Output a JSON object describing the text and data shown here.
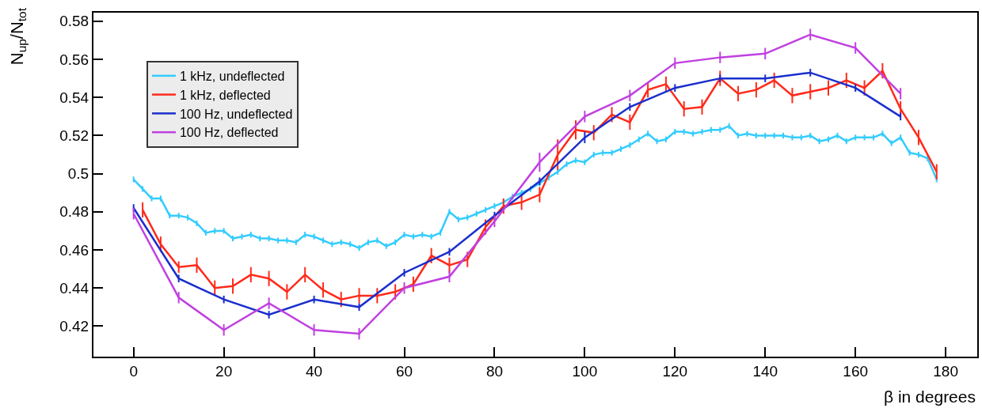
{
  "chart_data": {
    "type": "line",
    "xlabel": "β in degrees",
    "ylabel": "N$_{up}$/N$_{tot}$",
    "xlim": [
      -8.9,
      187
    ],
    "xticks": [
      0,
      20,
      40,
      60,
      80,
      100,
      120,
      140,
      160,
      180
    ],
    "ylim": [
      0.404,
      0.5845
    ],
    "yticks": [
      0.42,
      0.44,
      0.46,
      0.48,
      {
        "value": 0.5,
        "label": "0.5"
      },
      0.52,
      0.54,
      0.56,
      0.58
    ],
    "grid": false,
    "legend": "top left",
    "marker": "none",
    "line_style": "solid",
    "series": [
      {
        "name": "1 kHz, undeflected",
        "color": "#33ccff",
        "x": [
          0,
          2,
          4,
          6,
          8,
          10,
          12,
          14,
          16,
          18,
          20,
          22,
          24,
          26,
          28,
          30,
          32,
          34,
          36,
          38,
          40,
          42,
          44,
          46,
          48,
          50,
          52,
          54,
          56,
          58,
          60,
          62,
          64,
          66,
          68,
          70,
          72,
          74,
          76,
          78,
          80,
          82,
          84,
          86,
          88,
          90,
          92,
          94,
          96,
          98,
          100,
          102,
          104,
          106,
          108,
          110,
          112,
          114,
          116,
          118,
          120,
          122,
          124,
          126,
          128,
          130,
          132,
          134,
          136,
          138,
          140,
          142,
          144,
          146,
          148,
          150,
          152,
          154,
          156,
          158,
          160,
          162,
          164,
          166,
          168,
          170,
          172,
          174,
          176,
          178
        ],
        "values": [
          0.497,
          0.492,
          0.487,
          0.487,
          0.478,
          0.478,
          0.477,
          0.474,
          0.469,
          0.47,
          0.47,
          0.466,
          0.467,
          0.468,
          0.466,
          0.466,
          0.465,
          0.465,
          0.464,
          0.468,
          0.467,
          0.465,
          0.463,
          0.464,
          0.463,
          0.461,
          0.464,
          0.465,
          0.462,
          0.464,
          0.468,
          0.467,
          0.468,
          0.467,
          0.469,
          0.48,
          0.476,
          0.477,
          0.479,
          0.481,
          0.483,
          0.485,
          0.488,
          0.49,
          0.492,
          0.495,
          0.498,
          0.501,
          0.505,
          0.507,
          0.506,
          0.51,
          0.511,
          0.511,
          0.513,
          0.515,
          0.518,
          0.521,
          0.517,
          0.518,
          0.522,
          0.522,
          0.521,
          0.522,
          0.523,
          0.523,
          0.525,
          0.52,
          0.521,
          0.52,
          0.52,
          0.52,
          0.52,
          0.519,
          0.519,
          0.52,
          0.517,
          0.518,
          0.52,
          0.517,
          0.519,
          0.519,
          0.519,
          0.521,
          0.516,
          0.519,
          0.511,
          0.51,
          0.508,
          0.497
        ],
        "errors": [
          0.0015,
          0.0015,
          0.0015,
          0.0015,
          0.0015,
          0.0015,
          0.0015,
          0.0015,
          0.0015,
          0.0015,
          0.0015,
          0.0015,
          0.0015,
          0.0015,
          0.0015,
          0.0015,
          0.0015,
          0.0015,
          0.0015,
          0.0015,
          0.0015,
          0.0015,
          0.0015,
          0.0015,
          0.0015,
          0.0015,
          0.0015,
          0.0015,
          0.0015,
          0.0015,
          0.0015,
          0.0015,
          0.0015,
          0.0015,
          0.0015,
          0.0015,
          0.0015,
          0.0015,
          0.0015,
          0.0015,
          0.0015,
          0.0015,
          0.0015,
          0.0015,
          0.0015,
          0.0015,
          0.0015,
          0.0015,
          0.0015,
          0.0015,
          0.0015,
          0.0015,
          0.0015,
          0.0015,
          0.0015,
          0.0015,
          0.0015,
          0.0015,
          0.0015,
          0.0015,
          0.0015,
          0.0015,
          0.0015,
          0.0015,
          0.0015,
          0.0015,
          0.0015,
          0.0015,
          0.0015,
          0.0015,
          0.0015,
          0.0015,
          0.0015,
          0.0015,
          0.0015,
          0.0015,
          0.0015,
          0.0015,
          0.0015,
          0.0015,
          0.0015,
          0.0015,
          0.0015,
          0.0015,
          0.0015,
          0.0015,
          0.0015,
          0.0015,
          0.0015,
          0.0015
        ]
      },
      {
        "name": "1 kHz, deflected",
        "color": "#ff2a1a",
        "x": [
          2,
          6,
          10,
          14,
          18,
          22,
          26,
          30,
          34,
          38,
          42,
          46,
          50,
          54,
          58,
          62,
          66,
          70,
          74,
          78,
          82,
          86,
          90,
          94,
          98,
          102,
          106,
          110,
          114,
          118,
          122,
          126,
          130,
          134,
          138,
          142,
          146,
          150,
          154,
          158,
          162,
          166,
          170,
          174,
          178
        ],
        "values": [
          0.481,
          0.463,
          0.451,
          0.452,
          0.44,
          0.441,
          0.447,
          0.445,
          0.438,
          0.447,
          0.439,
          0.434,
          0.436,
          0.436,
          0.438,
          0.442,
          0.457,
          0.452,
          0.455,
          0.472,
          0.483,
          0.485,
          0.489,
          0.51,
          0.523,
          0.5215,
          0.531,
          0.527,
          0.544,
          0.547,
          0.534,
          0.535,
          0.55,
          0.542,
          0.544,
          0.549,
          0.541,
          0.543,
          0.545,
          0.549,
          0.545,
          0.554,
          0.534,
          0.519,
          0.501
        ],
        "errors": [
          0.004,
          0.004,
          0.003,
          0.004,
          0.004,
          0.004,
          0.004,
          0.004,
          0.004,
          0.004,
          0.004,
          0.004,
          0.004,
          0.004,
          0.004,
          0.004,
          0.004,
          0.004,
          0.004,
          0.004,
          0.004,
          0.004,
          0.004,
          0.008,
          0.005,
          0.004,
          0.004,
          0.004,
          0.004,
          0.004,
          0.004,
          0.004,
          0.004,
          0.004,
          0.004,
          0.004,
          0.004,
          0.004,
          0.004,
          0.004,
          0.004,
          0.004,
          0.004,
          0.004,
          0.004
        ]
      },
      {
        "name": "100 Hz, undeflected",
        "color": "#1a2ecc",
        "x": [
          0,
          10,
          20,
          30,
          40,
          50,
          60,
          70,
          80,
          90,
          100,
          110,
          120,
          130,
          140,
          150,
          160,
          170
        ],
        "values": [
          0.482,
          0.445,
          0.434,
          0.426,
          0.434,
          0.43,
          0.448,
          0.459,
          0.478,
          0.496,
          0.519,
          0.535,
          0.545,
          0.55,
          0.55,
          0.553,
          0.545,
          0.53
        ],
        "errors": [
          0.002,
          0.002,
          0.002,
          0.002,
          0.002,
          0.002,
          0.002,
          0.002,
          0.002,
          0.002,
          0.003,
          0.002,
          0.002,
          0.002,
          0.002,
          0.002,
          0.002,
          0.002
        ]
      },
      {
        "name": "100 Hz, deflected",
        "color": "#c040e0",
        "x": [
          0,
          10,
          20,
          30,
          40,
          50,
          60,
          70,
          80,
          90,
          100,
          110,
          120,
          130,
          140,
          150,
          160,
          170
        ],
        "values": [
          0.479,
          0.435,
          0.418,
          0.432,
          0.418,
          0.416,
          0.44,
          0.446,
          0.475,
          0.506,
          0.53,
          0.541,
          0.558,
          0.561,
          0.563,
          0.573,
          0.566,
          0.542
        ],
        "errors": [
          0.003,
          0.003,
          0.003,
          0.003,
          0.003,
          0.003,
          0.003,
          0.003,
          0.003,
          0.005,
          0.003,
          0.003,
          0.003,
          0.003,
          0.003,
          0.003,
          0.003,
          0.003
        ]
      }
    ]
  }
}
